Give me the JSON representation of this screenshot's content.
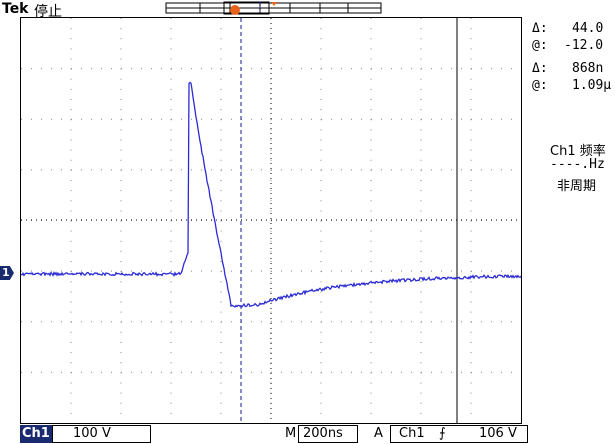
{
  "header": {
    "brand": "Tek",
    "status": "停止"
  },
  "markers": {
    "trigger_label": "T",
    "channel_label": "1"
  },
  "readouts": {
    "delta_glyph": "Δ:",
    "at_glyph": "@:",
    "volt_delta": "44.0",
    "volt_at": "-12.0",
    "time_delta": "868n",
    "time_at": "1.09µ"
  },
  "measurement": {
    "line1": "Ch1 频率",
    "line2": "----.Hz",
    "line3": "非周期"
  },
  "status_bar": {
    "channel": "Ch1",
    "scale": "100 V",
    "timebase_prefix": "M",
    "timebase": "200ns",
    "trigger_mode": "A",
    "trigger_source": "Ch1",
    "trigger_slope": "⨍",
    "trigger_level": "106 V"
  },
  "colors": {
    "trace": "#2b2bd6",
    "trigger_marker": "#e8611a",
    "channel_marker": "#1a2a6e",
    "cursor": "#1a1a9a"
  }
}
